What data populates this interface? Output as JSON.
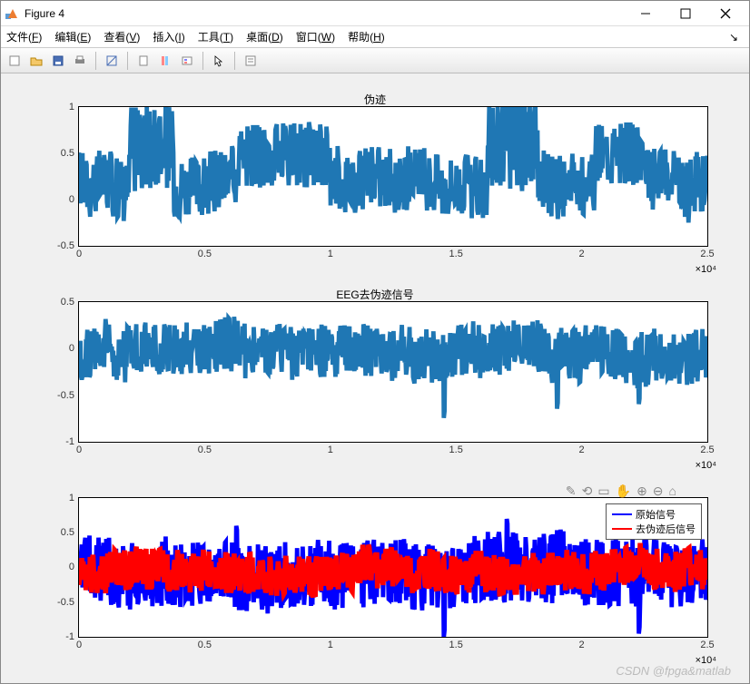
{
  "window": {
    "title": "Figure 4",
    "icon_colors": {
      "tl": "#5b9bd5",
      "tr": "#ed7d31",
      "bl": "#ffc000",
      "br": "#70ad47"
    }
  },
  "menu": {
    "items": [
      {
        "label": "文件",
        "key": "F"
      },
      {
        "label": "编辑",
        "key": "E"
      },
      {
        "label": "查看",
        "key": "V"
      },
      {
        "label": "插入",
        "key": "I"
      },
      {
        "label": "工具",
        "key": "T"
      },
      {
        "label": "桌面",
        "key": "D"
      },
      {
        "label": "窗口",
        "key": "W"
      },
      {
        "label": "帮助",
        "key": "H"
      }
    ],
    "overflow": "↘"
  },
  "toolbar": {
    "new_fig": "new-figure-icon",
    "open": "open-icon",
    "save": "save-icon",
    "print": "print-icon",
    "sep1": true,
    "edit_plot": "edit-icon",
    "sep2": true,
    "link": "link-icon",
    "colorbar": "colorbar-icon",
    "legend": "legend-icon",
    "sep3": true,
    "cursor": "cursor-icon",
    "sep4": true,
    "prop": "property-icon"
  },
  "figure": {
    "background_color": "#f0f0f0",
    "axes_bg": "#ffffff",
    "axes_border": "#000000",
    "tick_fontsize": 11,
    "subplots": [
      {
        "title": "伪迹",
        "ylim": [
          -0.5,
          1.0
        ],
        "yticks": [
          -0.5,
          0,
          0.5,
          1
        ],
        "xlim": [
          0,
          2.5
        ],
        "xticks": [
          0,
          0.5,
          1,
          1.5,
          2,
          2.5
        ],
        "xmultiplier": "×10⁴",
        "series": [
          {
            "color": "#1f77b4",
            "width": 0.6,
            "type": "noise",
            "baseline": 0.2,
            "amp": 0.35,
            "bursts": [
              [
                0.08,
                0.15,
                0.6
              ],
              [
                0.25,
                0.4,
                0.45
              ],
              [
                0.65,
                0.73,
                0.7
              ],
              [
                0.82,
                0.9,
                0.45
              ]
            ]
          }
        ]
      },
      {
        "title": "EEG去伪迹信号",
        "ylim": [
          -1.0,
          0.5
        ],
        "yticks": [
          -1,
          -0.5,
          0,
          0.5
        ],
        "xlim": [
          0,
          2.5
        ],
        "xticks": [
          0,
          0.5,
          1,
          1.5,
          2,
          2.5
        ],
        "xmultiplier": "×10⁴",
        "series": [
          {
            "color": "#1f77b4",
            "width": 0.6,
            "type": "noise",
            "baseline": -0.05,
            "amp": 0.3,
            "spikes": [
              [
                0.58,
                -0.75
              ],
              [
                0.76,
                -0.65
              ],
              [
                0.89,
                -0.6
              ]
            ]
          }
        ]
      },
      {
        "title": "",
        "ylim": [
          -1.0,
          1.0
        ],
        "yticks": [
          -1,
          -0.5,
          0,
          0.5,
          1
        ],
        "xlim": [
          0,
          2.5
        ],
        "xticks": [
          0,
          0.5,
          1,
          1.5,
          2,
          2.5
        ],
        "xmultiplier": "×10⁴",
        "show_axtools": true,
        "legend": {
          "items": [
            {
              "label": "原始信号",
              "color": "#0000ff"
            },
            {
              "label": "去伪迹后信号",
              "color": "#ff0000"
            }
          ]
        },
        "series": [
          {
            "color": "#0000ff",
            "width": 0.6,
            "type": "noise",
            "baseline": -0.1,
            "amp": 0.5,
            "spikes": [
              [
                0.25,
                0.6
              ],
              [
                0.58,
                -1.0
              ],
              [
                0.68,
                0.7
              ],
              [
                0.89,
                -0.95
              ]
            ]
          },
          {
            "color": "#ff0000",
            "width": 0.7,
            "type": "noise",
            "baseline": -0.05,
            "amp": 0.3
          }
        ]
      }
    ]
  },
  "watermark": "CSDN @fpga&matlab"
}
